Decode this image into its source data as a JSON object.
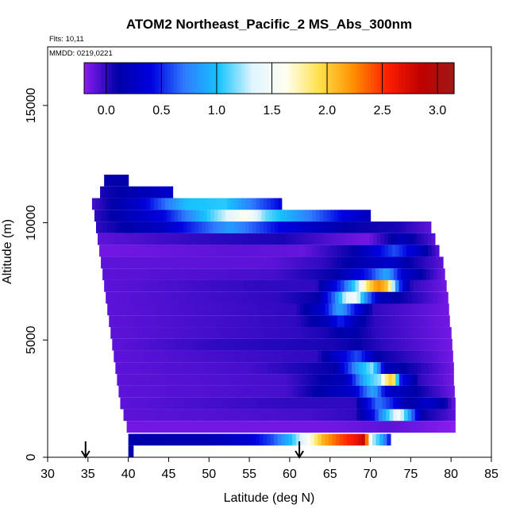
{
  "chart_data": {
    "type": "heatmap",
    "title": "ATOM2 Northeast_Pacific_2 MS_Abs_300nm",
    "flights_note": "Flts: 10,11",
    "date_note": "MMDD: 0219,0221",
    "xlabel": "Latitude (deg N)",
    "ylabel": "Altitude (m)",
    "xlim": [
      30,
      85
    ],
    "ylim": [
      0,
      17500
    ],
    "x_ticks": [
      "30",
      "35",
      "40",
      "45",
      "50",
      "55",
      "60",
      "65",
      "70",
      "75",
      "80",
      "85"
    ],
    "y_ticks": [
      "0",
      "5000",
      "10000",
      "15000"
    ],
    "colorbar": {
      "range": [
        -0.2,
        3.15
      ],
      "ticks": [
        "0.0",
        "0.5",
        "1.0",
        "1.5",
        "2.0",
        "2.5",
        "3.0"
      ],
      "colors": [
        "#8a1cf0",
        "#0000a8",
        "#0000e0",
        "#2f7cff",
        "#17c4ff",
        "#dff4ff",
        "#fffff0",
        "#ffe14a",
        "#ff9000",
        "#ff2000",
        "#c00000",
        "#a01818"
      ]
    },
    "arrow_latitudes": [
      34.7,
      61.2
    ],
    "bands": [
      {
        "alt": 11800,
        "lat_start": 37.0,
        "lat_end": 40.0,
        "profile": [
          [
            0,
            0.1
          ],
          [
            1,
            0.1
          ]
        ]
      },
      {
        "alt": 11300,
        "lat_start": 36.5,
        "lat_end": 45.5,
        "profile": [
          [
            0,
            0.05
          ],
          [
            0.5,
            0.15
          ],
          [
            1,
            0.3
          ]
        ]
      },
      {
        "alt": 10800,
        "lat_start": 35.5,
        "lat_end": 59.0,
        "profile": [
          [
            0,
            -0.05
          ],
          [
            0.25,
            0.3
          ],
          [
            0.5,
            1.0
          ],
          [
            0.7,
            1.05
          ],
          [
            0.85,
            0.7
          ],
          [
            1,
            0.4
          ]
        ]
      },
      {
        "alt": 10300,
        "lat_start": 35.8,
        "lat_end": 70.0,
        "profile": [
          [
            0,
            0.0
          ],
          [
            0.25,
            0.4
          ],
          [
            0.45,
            1.2
          ],
          [
            0.55,
            1.6
          ],
          [
            0.62,
            1.15
          ],
          [
            0.75,
            0.8
          ],
          [
            0.9,
            0.4
          ],
          [
            1,
            0.2
          ]
        ]
      },
      {
        "alt": 9800,
        "lat_start": 36.0,
        "lat_end": 77.5,
        "profile": [
          [
            0,
            0.0
          ],
          [
            0.2,
            0.25
          ],
          [
            0.4,
            0.85
          ],
          [
            0.55,
            0.4
          ],
          [
            0.75,
            0.1
          ],
          [
            0.9,
            0.05
          ],
          [
            1,
            -0.1
          ]
        ]
      },
      {
        "alt": 9300,
        "lat_start": 36.2,
        "lat_end": 78.0,
        "profile": [
          [
            0,
            -0.1
          ],
          [
            0.3,
            0.0
          ],
          [
            0.55,
            0.05
          ],
          [
            0.72,
            -0.1
          ],
          [
            0.8,
            -0.15
          ],
          [
            0.9,
            0.2
          ],
          [
            1,
            -0.1
          ]
        ]
      },
      {
        "alt": 8800,
        "lat_start": 36.4,
        "lat_end": 78.5,
        "profile": [
          [
            0,
            -0.15
          ],
          [
            0.4,
            -0.1
          ],
          [
            0.6,
            -0.12
          ],
          [
            0.75,
            0.1
          ],
          [
            0.87,
            0.6
          ],
          [
            0.93,
            0.3
          ],
          [
            1,
            -0.1
          ]
        ]
      },
      {
        "alt": 8300,
        "lat_start": 36.6,
        "lat_end": 79.0,
        "profile": [
          [
            0,
            -0.1
          ],
          [
            0.5,
            -0.1
          ],
          [
            0.65,
            0.0
          ],
          [
            0.75,
            0.15
          ],
          [
            0.85,
            0.3
          ],
          [
            0.9,
            0.1
          ],
          [
            1,
            -0.1
          ]
        ]
      },
      {
        "alt": 7800,
        "lat_start": 36.8,
        "lat_end": 79.2,
        "profile": [
          [
            0,
            -0.1
          ],
          [
            0.5,
            -0.05
          ],
          [
            0.68,
            0.1
          ],
          [
            0.78,
            0.5
          ],
          [
            0.83,
            0.9
          ],
          [
            0.88,
            0.3
          ],
          [
            1,
            -0.15
          ]
        ]
      },
      {
        "alt": 7300,
        "lat_start": 37.0,
        "lat_end": 79.4,
        "profile": [
          [
            0,
            -0.1
          ],
          [
            0.45,
            0.0
          ],
          [
            0.62,
            0.0
          ],
          [
            0.7,
            0.6
          ],
          [
            0.74,
            1.2
          ],
          [
            0.77,
            1.9
          ],
          [
            0.8,
            2.25
          ],
          [
            0.83,
            2.0
          ],
          [
            0.86,
            0.6
          ],
          [
            0.9,
            0.0
          ],
          [
            1,
            -0.15
          ]
        ]
      },
      {
        "alt": 6800,
        "lat_start": 37.2,
        "lat_end": 79.6,
        "profile": [
          [
            0,
            -0.1
          ],
          [
            0.5,
            0.0
          ],
          [
            0.62,
            0.1
          ],
          [
            0.67,
            0.7
          ],
          [
            0.7,
            1.3
          ],
          [
            0.73,
            1.5
          ],
          [
            0.76,
            0.8
          ],
          [
            0.8,
            0.2
          ],
          [
            1,
            -0.15
          ]
        ]
      },
      {
        "alt": 6300,
        "lat_start": 37.4,
        "lat_end": 79.7,
        "profile": [
          [
            0,
            -0.1
          ],
          [
            0.55,
            0.0
          ],
          [
            0.63,
            0.3
          ],
          [
            0.68,
            0.9
          ],
          [
            0.72,
            0.5
          ],
          [
            0.78,
            0.0
          ],
          [
            1,
            -0.15
          ]
        ]
      },
      {
        "alt": 5800,
        "lat_start": 37.6,
        "lat_end": 79.8,
        "profile": [
          [
            0,
            -0.1
          ],
          [
            0.55,
            0.0
          ],
          [
            0.64,
            0.2
          ],
          [
            0.68,
            0.5
          ],
          [
            0.72,
            0.2
          ],
          [
            0.78,
            0.0
          ],
          [
            1,
            -0.15
          ]
        ]
      },
      {
        "alt": 5300,
        "lat_start": 37.8,
        "lat_end": 80.0,
        "profile": [
          [
            0,
            -0.1
          ],
          [
            0.55,
            0.0
          ],
          [
            0.63,
            0.05
          ],
          [
            0.7,
            0.15
          ],
          [
            0.78,
            0.0
          ],
          [
            1,
            -0.15
          ]
        ]
      },
      {
        "alt": 4800,
        "lat_start": 38.0,
        "lat_end": 80.1,
        "profile": [
          [
            0,
            -0.1
          ],
          [
            0.3,
            0.0
          ],
          [
            0.65,
            0.05
          ],
          [
            0.72,
            0.1
          ],
          [
            0.8,
            0.0
          ],
          [
            1,
            -0.15
          ]
        ]
      },
      {
        "alt": 4300,
        "lat_start": 38.2,
        "lat_end": 80.2,
        "profile": [
          [
            0,
            -0.1
          ],
          [
            0.3,
            -0.05
          ],
          [
            0.6,
            0.0
          ],
          [
            0.68,
            0.4
          ],
          [
            0.72,
            0.6
          ],
          [
            0.78,
            0.1
          ],
          [
            1,
            -0.15
          ]
        ]
      },
      {
        "alt": 3800,
        "lat_start": 38.4,
        "lat_end": 80.3,
        "profile": [
          [
            0,
            -0.1
          ],
          [
            0.4,
            -0.05
          ],
          [
            0.65,
            0.1
          ],
          [
            0.72,
            0.9
          ],
          [
            0.76,
            1.2
          ],
          [
            0.8,
            0.2
          ],
          [
            1,
            -0.15
          ]
        ]
      },
      {
        "alt": 3300,
        "lat_start": 38.6,
        "lat_end": 80.3,
        "profile": [
          [
            0,
            -0.1
          ],
          [
            0.5,
            -0.05
          ],
          [
            0.68,
            0.2
          ],
          [
            0.74,
            1.0
          ],
          [
            0.78,
            1.2
          ],
          [
            0.8,
            1.8
          ],
          [
            0.82,
            2.1
          ],
          [
            0.84,
            0.5
          ],
          [
            0.9,
            0.0
          ],
          [
            1,
            -0.15
          ]
        ]
      },
      {
        "alt": 2800,
        "lat_start": 38.8,
        "lat_end": 80.4,
        "profile": [
          [
            0,
            -0.1
          ],
          [
            0.5,
            -0.05
          ],
          [
            0.7,
            0.3
          ],
          [
            0.76,
            0.9
          ],
          [
            0.8,
            0.3
          ],
          [
            1,
            -0.15
          ]
        ]
      },
      {
        "alt": 2300,
        "lat_start": 39.0,
        "lat_end": 80.5,
        "profile": [
          [
            0,
            -0.1
          ],
          [
            0.5,
            0.0
          ],
          [
            0.7,
            0.0
          ],
          [
            0.73,
            0.3
          ],
          [
            0.77,
            0.7
          ],
          [
            0.81,
            0.5
          ],
          [
            0.86,
            0.1
          ],
          [
            0.92,
            0.3
          ],
          [
            0.97,
            0.1
          ],
          [
            1,
            -0.15
          ]
        ]
      },
      {
        "alt": 1800,
        "lat_start": 39.4,
        "lat_end": 80.5,
        "profile": [
          [
            0,
            -0.1
          ],
          [
            0.55,
            -0.05
          ],
          [
            0.7,
            0.0
          ],
          [
            0.75,
            0.4
          ],
          [
            0.8,
            1.1
          ],
          [
            0.83,
            1.5
          ],
          [
            0.86,
            0.9
          ],
          [
            0.9,
            0.1
          ],
          [
            1,
            -0.1
          ]
        ]
      },
      {
        "alt": 1300,
        "lat_start": 39.8,
        "lat_end": 80.5,
        "profile": [
          [
            0,
            -0.15
          ],
          [
            0.4,
            -0.15
          ],
          [
            0.6,
            -0.15
          ],
          [
            0.8,
            -0.1
          ],
          [
            1,
            -0.2
          ]
        ]
      },
      {
        "alt": 750,
        "lat_start": 40.0,
        "lat_end": 72.5,
        "profile": [
          [
            0,
            0.1
          ],
          [
            0.3,
            0.15
          ],
          [
            0.45,
            0.3
          ],
          [
            0.55,
            0.6
          ],
          [
            0.62,
            1.0
          ],
          [
            0.68,
            1.5
          ],
          [
            0.74,
            2.1
          ],
          [
            0.8,
            2.4
          ],
          [
            0.86,
            2.6
          ],
          [
            0.9,
            2.8
          ],
          [
            0.93,
            1.3
          ],
          [
            0.96,
            1.0
          ],
          [
            1,
            0.4
          ]
        ]
      },
      {
        "alt": 250,
        "lat_start": 40.0,
        "lat_end": 40.6,
        "profile": [
          [
            0,
            0.1
          ],
          [
            1,
            0.1
          ]
        ]
      }
    ]
  }
}
